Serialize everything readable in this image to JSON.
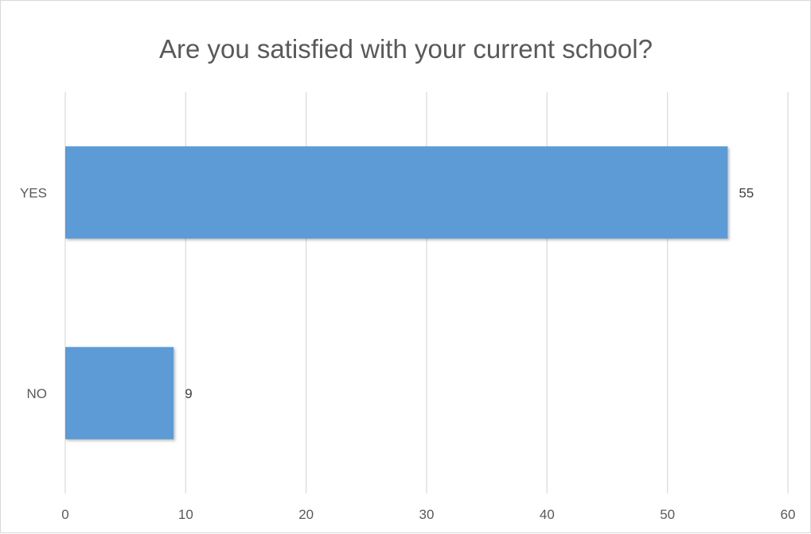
{
  "chart_data": {
    "type": "bar",
    "orientation": "horizontal",
    "title": "Are you satisfied with your current school?",
    "categories": [
      "YES",
      "NO"
    ],
    "values": [
      55,
      9
    ],
    "xlabel": "",
    "ylabel": "",
    "xlim": [
      0,
      60
    ],
    "xticks": [
      0,
      10,
      20,
      30,
      40,
      50,
      60
    ],
    "grid": true,
    "legend": "none",
    "bar_color": "#5b9bd5",
    "data_labels": true
  }
}
